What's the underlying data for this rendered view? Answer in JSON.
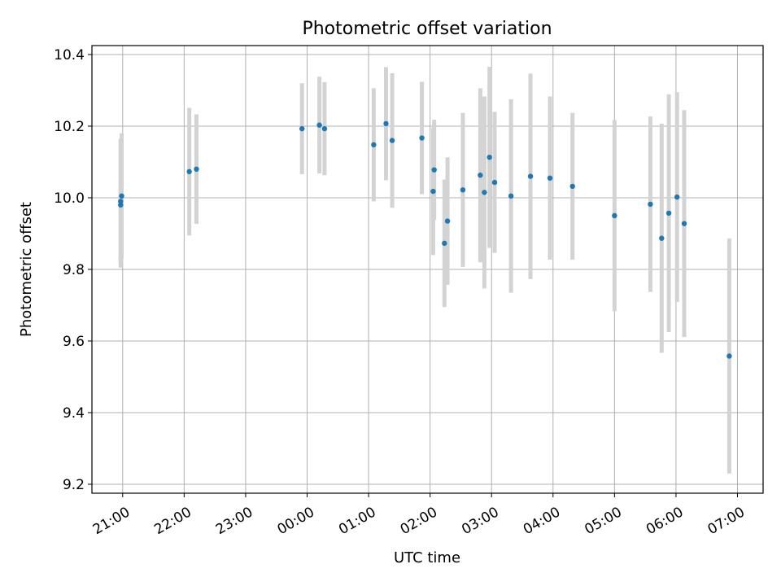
{
  "chart_data": {
    "type": "scatter",
    "title": "Photometric offset variation",
    "xlabel": "UTC time",
    "ylabel": "Photometric offset",
    "ylim": [
      9.175,
      10.425
    ],
    "xlim": [
      "20:30",
      "07:25"
    ],
    "grid": true,
    "x_tick_labels": [
      "21:00",
      "22:00",
      "23:00",
      "00:00",
      "01:00",
      "02:00",
      "03:00",
      "04:00",
      "05:00",
      "06:00",
      "07:00"
    ],
    "y_tick_labels": [
      "9.2",
      "9.4",
      "9.6",
      "9.8",
      "10.0",
      "10.2",
      "10.4"
    ],
    "y_ticks": [
      9.2,
      9.4,
      9.6,
      9.8,
      10.0,
      10.2,
      10.4
    ],
    "colors": {
      "points": "#1f77b4",
      "errorbars": "#d3d3d3",
      "grid": "#b0b0b0"
    },
    "series": [
      {
        "points": [
          {
            "x": "20:58",
            "y": 9.98,
            "yerr": 0.175
          },
          {
            "x": "20:58",
            "y": 9.99,
            "yerr": 0.175
          },
          {
            "x": "20:59",
            "y": 10.005,
            "yerr": 0.175
          },
          {
            "x": "22:05",
            "y": 10.073,
            "yerr": 0.178
          },
          {
            "x": "22:12",
            "y": 10.08,
            "yerr": 0.153
          },
          {
            "x": "23:55",
            "y": 10.193,
            "yerr": 0.127
          },
          {
            "x": "00:12",
            "y": 10.203,
            "yerr": 0.135
          },
          {
            "x": "00:17",
            "y": 10.193,
            "yerr": 0.13
          },
          {
            "x": "01:05",
            "y": 10.148,
            "yerr": 0.158
          },
          {
            "x": "01:17",
            "y": 10.207,
            "yerr": 0.158
          },
          {
            "x": "01:23",
            "y": 10.16,
            "yerr": 0.188
          },
          {
            "x": "01:52",
            "y": 10.167,
            "yerr": 0.157
          },
          {
            "x": "02:03",
            "y": 10.018,
            "yerr": 0.178
          },
          {
            "x": "02:04",
            "y": 10.078,
            "yerr": 0.14
          },
          {
            "x": "02:14",
            "y": 9.873,
            "yerr": 0.178
          },
          {
            "x": "02:17",
            "y": 9.935,
            "yerr": 0.178
          },
          {
            "x": "02:32",
            "y": 10.022,
            "yerr": 0.215
          },
          {
            "x": "02:49",
            "y": 10.063,
            "yerr": 0.243
          },
          {
            "x": "02:53",
            "y": 10.015,
            "yerr": 0.268
          },
          {
            "x": "02:58",
            "y": 10.113,
            "yerr": 0.253
          },
          {
            "x": "03:03",
            "y": 10.043,
            "yerr": 0.197
          },
          {
            "x": "03:19",
            "y": 10.005,
            "yerr": 0.27
          },
          {
            "x": "03:38",
            "y": 10.06,
            "yerr": 0.287
          },
          {
            "x": "03:57",
            "y": 10.055,
            "yerr": 0.228
          },
          {
            "x": "04:19",
            "y": 10.032,
            "yerr": 0.205
          },
          {
            "x": "05:00",
            "y": 9.95,
            "yerr": 0.267
          },
          {
            "x": "05:35",
            "y": 9.982,
            "yerr": 0.245
          },
          {
            "x": "05:46",
            "y": 9.887,
            "yerr": 0.32
          },
          {
            "x": "05:53",
            "y": 9.957,
            "yerr": 0.332
          },
          {
            "x": "06:01",
            "y": 10.002,
            "yerr": 0.293
          },
          {
            "x": "06:08",
            "y": 9.928,
            "yerr": 0.317
          },
          {
            "x": "06:52",
            "y": 9.558,
            "yerr": 0.328
          }
        ]
      }
    ]
  }
}
